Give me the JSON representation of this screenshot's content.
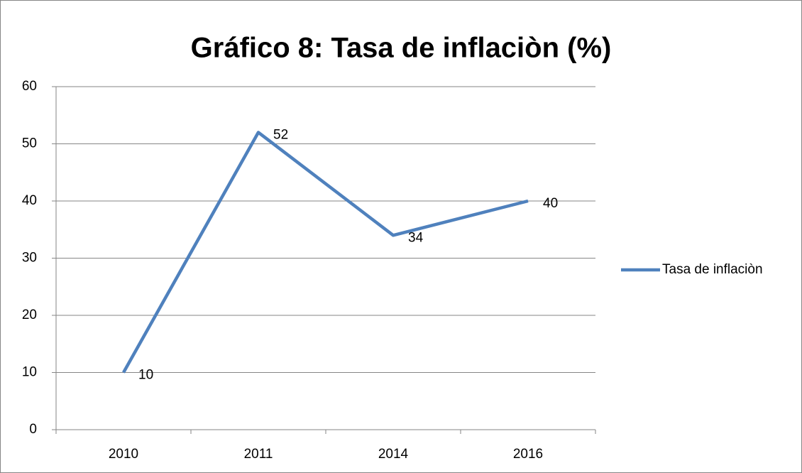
{
  "chart_data": {
    "type": "line",
    "title": "Gráfico 8: Tasa de inflaciòn (%)",
    "categories": [
      "2010",
      "2011",
      "2014",
      "2016"
    ],
    "series": [
      {
        "name": "Tasa de inflaciòn",
        "color": "#4f81bd",
        "values": [
          10,
          52,
          34,
          40
        ]
      }
    ],
    "ylim": [
      0,
      60
    ],
    "yticks": [
      0,
      10,
      20,
      30,
      40,
      50,
      60
    ],
    "grid": true,
    "legend": "right",
    "data_labels": true
  }
}
